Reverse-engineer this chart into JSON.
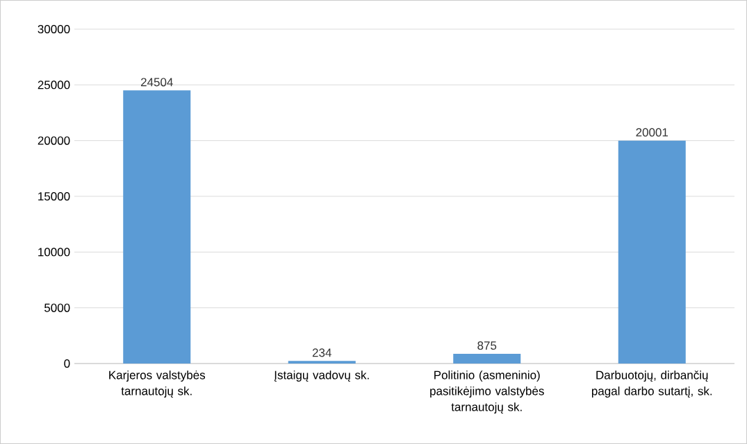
{
  "chart_data": {
    "type": "bar",
    "categories": [
      "Karjeros valstybės tarnautojų sk.",
      "Įstaigų vadovų sk.",
      "Politinio (asmeninio) pasitikėjimo valstybės tarnautojų sk.",
      "Darbuotojų, dirbančių pagal darbo sutartį, sk."
    ],
    "values": [
      24504,
      234,
      875,
      20001
    ],
    "color": "#5b9bd5",
    "ylim": [
      0,
      30000
    ],
    "yticks": [
      0,
      5000,
      10000,
      15000,
      20000,
      25000,
      30000
    ],
    "grid": "y",
    "data_labels": true
  }
}
